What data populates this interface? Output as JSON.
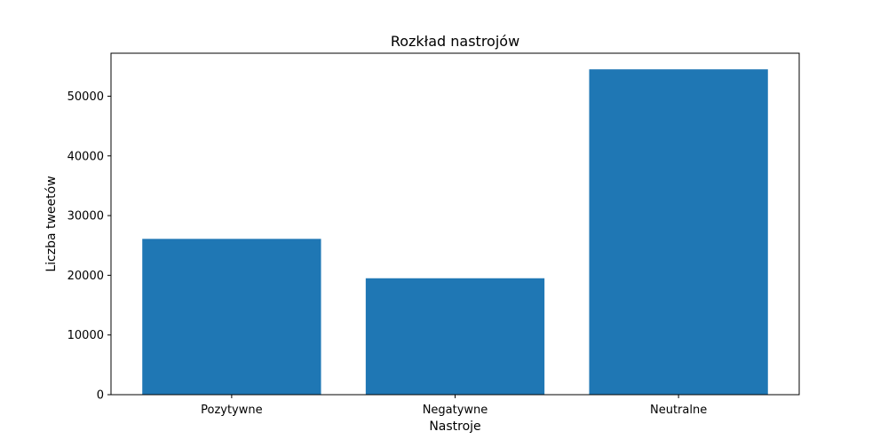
{
  "chart_data": {
    "type": "bar",
    "title": "Rozkład nastrojów",
    "xlabel": "Nastroje",
    "ylabel": "Liczba tweetów",
    "categories": [
      "Pozytywne",
      "Negatywne",
      "Neutralne"
    ],
    "values": [
      26100,
      19500,
      54500
    ],
    "ylim": [
      0,
      57200
    ],
    "yticks": [
      0,
      10000,
      20000,
      30000,
      40000,
      50000
    ],
    "grid": false,
    "legend": "none",
    "bar_color": "#1f77b4"
  }
}
